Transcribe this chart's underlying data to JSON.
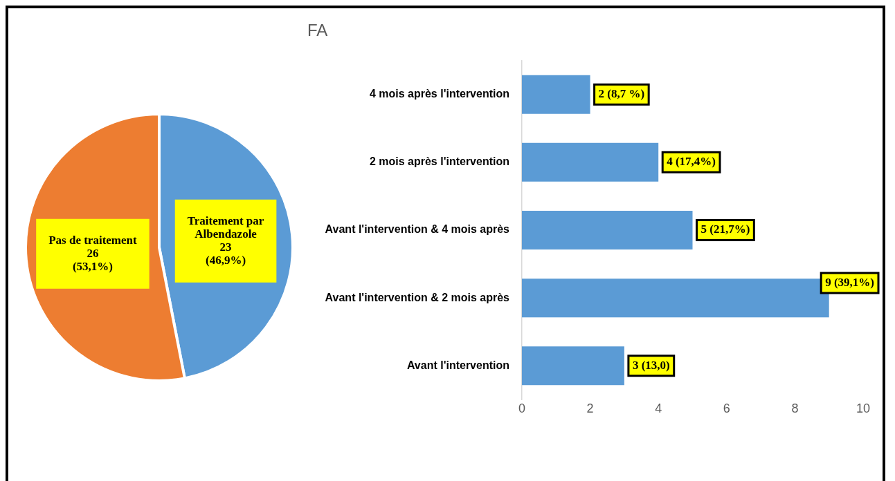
{
  "chart_data": [
    {
      "type": "pie",
      "title": "FA",
      "categories": [
        "Traitement par Albendazole",
        "Pas de traitement"
      ],
      "values": [
        23,
        26
      ],
      "colors": [
        "#5b9bd5",
        "#ed7d31"
      ],
      "value_labels": [
        "23 (46,9%)",
        "26 (53,1%)"
      ],
      "legend": false
    },
    {
      "type": "bar",
      "orientation": "horizontal",
      "categories": [
        "4 mois après l'intervention",
        "2 mois après l'intervention",
        "Avant l'intervention & 4 mois après",
        "Avant l'intervention & 2 mois après",
        "Avant l'intervention"
      ],
      "values": [
        2,
        4,
        5,
        9,
        3
      ],
      "color": "#5b9bd5",
      "value_labels": [
        "2 (8,7 %)",
        "4 (17,4%)",
        "5 (21,7%)",
        "9 (39,1%)",
        "3 (13,0)"
      ],
      "xlim": [
        0,
        10
      ],
      "xticks": [
        0,
        2,
        4,
        6,
        8,
        10
      ],
      "grid": false,
      "legend": false
    }
  ]
}
